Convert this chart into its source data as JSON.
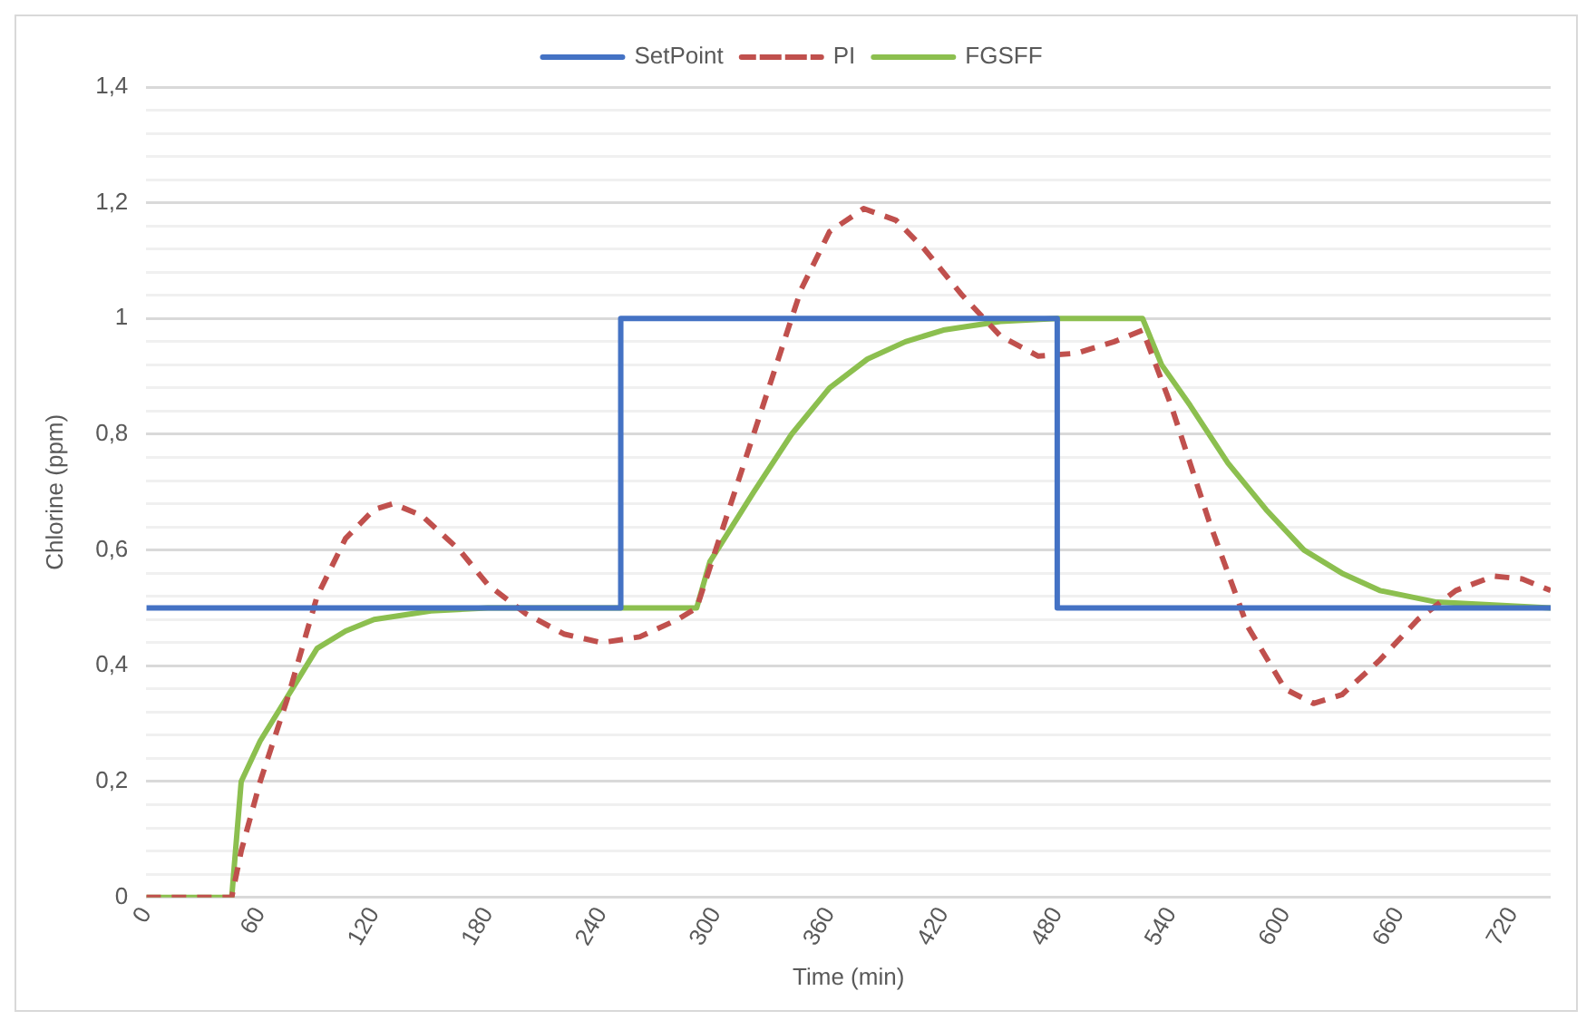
{
  "chart_data": {
    "type": "line",
    "xlabel": "Time (min)",
    "ylabel": "Chlorine (ppm)",
    "xlim": [
      0,
      740
    ],
    "xticks": [
      0,
      60,
      120,
      180,
      240,
      300,
      360,
      420,
      480,
      540,
      600,
      660,
      720
    ],
    "ylim": [
      0,
      1.4
    ],
    "yticks": [
      {
        "value": 0,
        "label": "0"
      },
      {
        "value": 0.04,
        "label": null
      },
      {
        "value": 0.08,
        "label": null
      },
      {
        "value": 0.12,
        "label": null
      },
      {
        "value": 0.16,
        "label": null
      },
      {
        "value": 0.2,
        "label": "0,2"
      },
      {
        "value": 0.24,
        "label": null
      },
      {
        "value": 0.28,
        "label": null
      },
      {
        "value": 0.32,
        "label": null
      },
      {
        "value": 0.36,
        "label": null
      },
      {
        "value": 0.4,
        "label": "0,4"
      },
      {
        "value": 0.44,
        "label": null
      },
      {
        "value": 0.48,
        "label": null
      },
      {
        "value": 0.52,
        "label": null
      },
      {
        "value": 0.56,
        "label": null
      },
      {
        "value": 0.6,
        "label": "0,6"
      },
      {
        "value": 0.64,
        "label": null
      },
      {
        "value": 0.68,
        "label": null
      },
      {
        "value": 0.72,
        "label": null
      },
      {
        "value": 0.76,
        "label": null
      },
      {
        "value": 0.8,
        "label": "0,8"
      },
      {
        "value": 0.84,
        "label": null
      },
      {
        "value": 0.88,
        "label": null
      },
      {
        "value": 0.92,
        "label": null
      },
      {
        "value": 0.96,
        "label": null
      },
      {
        "value": 1,
        "label": "1"
      },
      {
        "value": 1.04,
        "label": null
      },
      {
        "value": 1.08,
        "label": null
      },
      {
        "value": 1.12,
        "label": null
      },
      {
        "value": 1.16,
        "label": null
      },
      {
        "value": 1.2,
        "label": "1,2"
      },
      {
        "value": 1.24,
        "label": null
      },
      {
        "value": 1.28,
        "label": null
      },
      {
        "value": 1.32,
        "label": null
      },
      {
        "value": 1.36,
        "label": null
      },
      {
        "value": 1.4,
        "label": "1,4"
      }
    ],
    "grid": "y",
    "legend": "top",
    "marker": "none",
    "series": [
      {
        "name": "SetPoint",
        "color": "#4472c4",
        "line_style": "solid",
        "x": [
          0,
          250,
          250,
          480,
          480,
          740
        ],
        "values": [
          0.5,
          0.5,
          1,
          1,
          0.5,
          0.5
        ]
      },
      {
        "name": "PI",
        "color": "#c0504d",
        "line_style": "dashed",
        "x": [
          0,
          45,
          50,
          60,
          75,
          90,
          105,
          120,
          130,
          145,
          165,
          180,
          200,
          220,
          240,
          260,
          280,
          290,
          310,
          330,
          345,
          360,
          378,
          395,
          410,
          430,
          450,
          470,
          490,
          510,
          525,
          540,
          560,
          580,
          600,
          615,
          630,
          650,
          670,
          690,
          710,
          725,
          740
        ],
        "values": [
          0,
          0,
          0.08,
          0.2,
          0.35,
          0.52,
          0.62,
          0.67,
          0.68,
          0.66,
          0.6,
          0.54,
          0.49,
          0.455,
          0.44,
          0.45,
          0.48,
          0.5,
          0.7,
          0.9,
          1.05,
          1.15,
          1.19,
          1.17,
          1.12,
          1.04,
          0.97,
          0.935,
          0.94,
          0.96,
          0.98,
          0.85,
          0.65,
          0.47,
          0.36,
          0.335,
          0.35,
          0.41,
          0.48,
          0.53,
          0.555,
          0.55,
          0.53
        ]
      },
      {
        "name": "FGSFF",
        "color": "#8cbf4f",
        "line_style": "solid",
        "x": [
          0,
          45,
          50,
          60,
          75,
          90,
          105,
          120,
          150,
          180,
          290,
          297,
          320,
          340,
          360,
          380,
          400,
          420,
          450,
          480,
          525,
          535,
          550,
          570,
          590,
          610,
          630,
          650,
          680,
          740
        ],
        "values": [
          0,
          0,
          0.2,
          0.27,
          0.35,
          0.43,
          0.46,
          0.48,
          0.495,
          0.5,
          0.5,
          0.58,
          0.7,
          0.8,
          0.88,
          0.93,
          0.96,
          0.98,
          0.995,
          1,
          1,
          0.92,
          0.85,
          0.75,
          0.67,
          0.6,
          0.56,
          0.53,
          0.51,
          0.5
        ]
      }
    ]
  }
}
